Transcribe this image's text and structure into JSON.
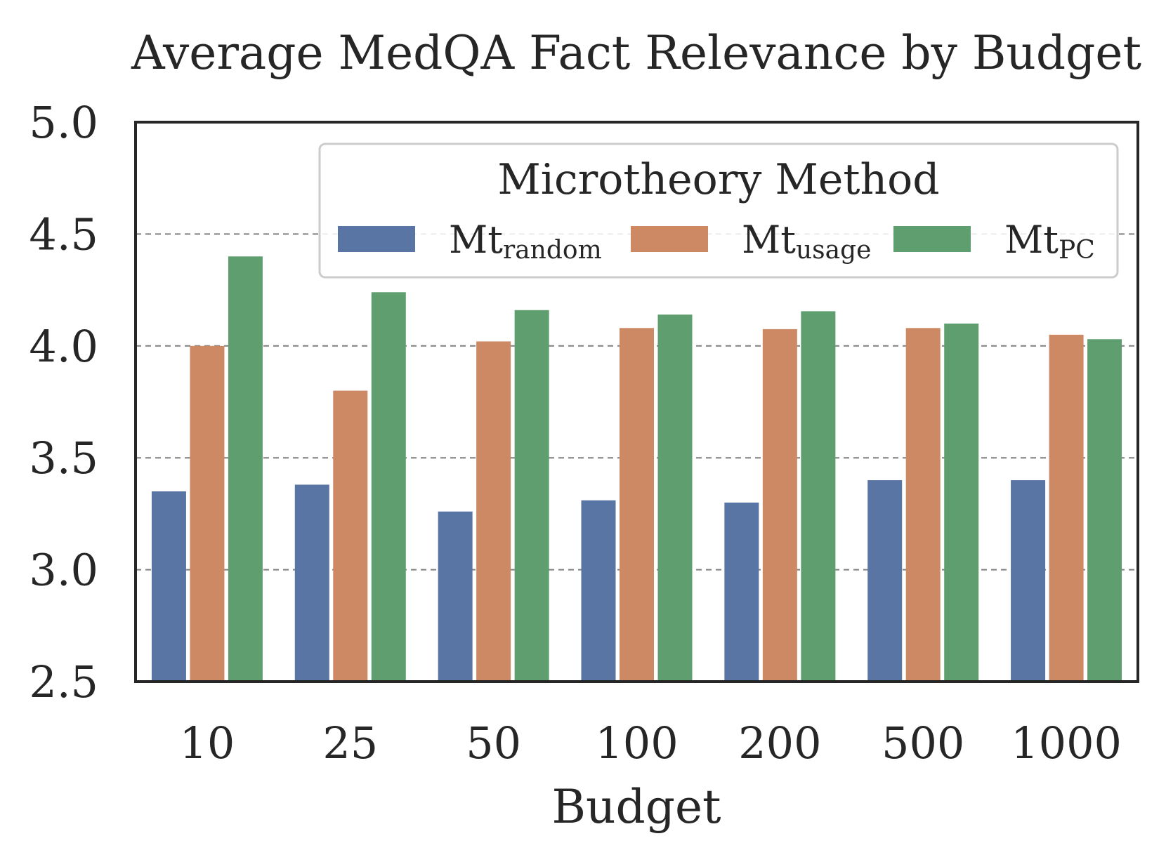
{
  "chart_data": {
    "type": "bar",
    "title": "Average MedQA Fact Relevance by Budget",
    "xlabel": "Budget",
    "ylabel": "",
    "ylim": [
      2.5,
      5.0
    ],
    "yticks": [
      "2.5",
      "3.0",
      "3.5",
      "4.0",
      "4.5",
      "5.0"
    ],
    "grid": "horizontal dashed",
    "categories": [
      "10",
      "25",
      "50",
      "100",
      "200",
      "500",
      "1000"
    ],
    "legend": {
      "title": "Microtheory Method",
      "placement": "top-right"
    },
    "series": [
      {
        "name": "Mt",
        "subscript": "random",
        "color": "#5975a4",
        "values": [
          3.35,
          3.38,
          3.26,
          3.31,
          3.3,
          3.4,
          3.4
        ]
      },
      {
        "name": "Mt",
        "subscript": "usage",
        "color": "#cc8963",
        "values": [
          4.0,
          3.8,
          4.02,
          4.08,
          4.075,
          4.08,
          4.05
        ]
      },
      {
        "name": "Mt",
        "subscript": "PC",
        "color": "#5f9e6e",
        "values": [
          4.4,
          4.24,
          4.16,
          4.14,
          4.155,
          4.1,
          4.03
        ]
      }
    ]
  }
}
